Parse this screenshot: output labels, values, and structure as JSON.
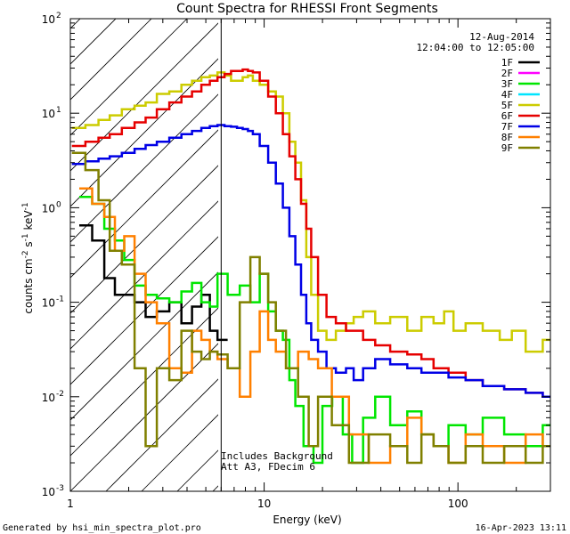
{
  "chart_data": {
    "type": "line",
    "title": "Count Spectra for RHESSI Front Segments",
    "xlabel": "Energy (keV)",
    "ylabel": "counts cm-2 s-1 keV-1",
    "xscale": "log",
    "yscale": "log",
    "xlim": [
      1,
      300
    ],
    "ylim": [
      0.001,
      100
    ],
    "x_ticks": [
      {
        "value": 1,
        "label": "1"
      },
      {
        "value": 10,
        "label": "10"
      },
      {
        "value": 100,
        "label": "100"
      }
    ],
    "y_ticks": [
      {
        "value": 0.001,
        "base": "10",
        "exp": "-3"
      },
      {
        "value": 0.01,
        "base": "10",
        "exp": "-2"
      },
      {
        "value": 0.1,
        "base": "10",
        "exp": "-1"
      },
      {
        "value": 1,
        "base": "10",
        "exp": "0"
      },
      {
        "value": 10,
        "base": "10",
        "exp": "1"
      },
      {
        "value": 100,
        "base": "10",
        "exp": "2"
      }
    ],
    "attenuator_region": {
      "from": 1,
      "to": 6,
      "hatched": true
    },
    "date": "12-Aug-2014",
    "time_range": "12:04:00 to 12:05:00",
    "notes": [
      "Includes Background",
      "Att A3, FDecim 6"
    ],
    "legend_position": "top-right",
    "series": [
      {
        "name": "1F",
        "color": "#000000",
        "x": [
          1.2,
          1.4,
          1.6,
          1.8,
          2.0,
          2.3,
          2.6,
          3.0,
          3.5,
          4.0,
          4.5,
          5.0,
          5.5,
          6.0
        ],
        "y": [
          0.65,
          0.45,
          0.18,
          0.12,
          0.12,
          0.1,
          0.07,
          0.08,
          0.1,
          0.06,
          0.09,
          0.12,
          0.05,
          0.04
        ]
      },
      {
        "name": "2F",
        "color": "#ff00ff",
        "x": [],
        "y": []
      },
      {
        "name": "3F",
        "color": "#00e600",
        "x": [
          1.2,
          1.4,
          1.6,
          1.8,
          2.0,
          2.3,
          2.6,
          3.0,
          3.5,
          4.0,
          4.5,
          5.0,
          5.5,
          6.0,
          7,
          8,
          9,
          10,
          11,
          12,
          13,
          14,
          15,
          17,
          19,
          21,
          24,
          27,
          30,
          35,
          40,
          50,
          60,
          70,
          80,
          100,
          120,
          150,
          200,
          250,
          300
        ],
        "y": [
          1.3,
          1.1,
          0.6,
          0.45,
          0.28,
          0.15,
          0.12,
          0.11,
          0.1,
          0.13,
          0.16,
          0.1,
          0.09,
          0.2,
          0.12,
          0.15,
          0.1,
          0.2,
          0.08,
          0.05,
          0.04,
          0.015,
          0.008,
          0.003,
          0.002,
          0.008,
          0.01,
          0.004,
          0.002,
          0.006,
          0.01,
          0.005,
          0.007,
          0.004,
          0.003,
          0.005,
          0.004,
          0.006,
          0.004,
          0.003,
          0.005
        ]
      },
      {
        "name": "4F",
        "color": "#00e5ff",
        "x": [],
        "y": []
      },
      {
        "name": "5F",
        "color": "#cccc00",
        "x": [
          1.1,
          1.3,
          1.5,
          1.7,
          2.0,
          2.3,
          2.6,
          3.0,
          3.5,
          4.0,
          4.5,
          5.0,
          5.5,
          6.0,
          6.5,
          7,
          7.5,
          8,
          8.5,
          9,
          10,
          11,
          12,
          13,
          14,
          15,
          16,
          17,
          18,
          20,
          22,
          25,
          28,
          30,
          35,
          40,
          50,
          60,
          70,
          80,
          90,
          100,
          120,
          150,
          180,
          200,
          250,
          300
        ],
        "y": [
          7,
          7.5,
          8.5,
          9.5,
          11,
          12,
          13,
          16,
          17,
          20,
          22,
          24,
          25,
          27,
          25,
          22,
          22,
          24,
          25,
          22,
          20,
          17,
          15,
          10,
          5,
          3,
          1.2,
          0.3,
          0.12,
          0.05,
          0.04,
          0.05,
          0.06,
          0.07,
          0.08,
          0.06,
          0.07,
          0.05,
          0.07,
          0.06,
          0.08,
          0.05,
          0.06,
          0.05,
          0.04,
          0.05,
          0.03,
          0.04
        ]
      },
      {
        "name": "6F",
        "color": "#e60000",
        "x": [
          1.1,
          1.3,
          1.5,
          1.7,
          2.0,
          2.3,
          2.6,
          3.0,
          3.5,
          4.0,
          4.5,
          5.0,
          5.5,
          6.0,
          6.5,
          7,
          7.5,
          8,
          8.5,
          9,
          10,
          11,
          12,
          13,
          14,
          15,
          16,
          17,
          18,
          20,
          22,
          25,
          28,
          30,
          35,
          40,
          50,
          60,
          70,
          80,
          100,
          120,
          150,
          200,
          250,
          300
        ],
        "y": [
          4.5,
          5,
          5.5,
          6,
          7,
          8,
          9,
          11,
          13,
          15,
          17,
          20,
          22,
          24,
          26,
          28,
          28,
          29,
          28,
          27,
          22,
          15,
          10,
          6,
          3.5,
          2,
          1.1,
          0.6,
          0.3,
          0.12,
          0.07,
          0.06,
          0.05,
          0.05,
          0.04,
          0.035,
          0.03,
          0.028,
          0.025,
          0.02,
          0.018,
          0.015,
          0.013,
          0.012,
          0.011,
          0.01
        ]
      },
      {
        "name": "7F",
        "color": "#0000e6",
        "x": [
          1.1,
          1.3,
          1.5,
          1.7,
          2.0,
          2.3,
          2.6,
          3.0,
          3.5,
          4.0,
          4.5,
          5.0,
          5.5,
          6.0,
          6.5,
          7,
          7.5,
          8,
          8.5,
          9,
          10,
          11,
          12,
          13,
          14,
          15,
          16,
          17,
          18,
          20,
          22,
          25,
          28,
          30,
          35,
          40,
          50,
          60,
          70,
          80,
          100,
          120,
          150,
          200,
          250,
          300
        ],
        "y": [
          2.9,
          3.1,
          3.3,
          3.5,
          3.8,
          4.2,
          4.6,
          5.0,
          5.5,
          6.0,
          6.5,
          7.0,
          7.3,
          7.5,
          7.3,
          7.2,
          7.0,
          6.8,
          6.5,
          6.0,
          4.5,
          3.0,
          1.8,
          1.0,
          0.5,
          0.25,
          0.12,
          0.06,
          0.04,
          0.03,
          0.02,
          0.018,
          0.02,
          0.015,
          0.02,
          0.025,
          0.022,
          0.02,
          0.018,
          0.018,
          0.016,
          0.015,
          0.013,
          0.012,
          0.011,
          0.01
        ]
      },
      {
        "name": "8F",
        "color": "#ff8000",
        "x": [
          1.2,
          1.4,
          1.6,
          1.8,
          2.0,
          2.3,
          2.6,
          3.0,
          3.5,
          4.0,
          4.5,
          5.0,
          5.5,
          6.0,
          7,
          8,
          9,
          10,
          11,
          12,
          14,
          16,
          18,
          20,
          25,
          30,
          40,
          50,
          60,
          70,
          80,
          100,
          120,
          150,
          200,
          250,
          300
        ],
        "y": [
          1.6,
          1.1,
          0.8,
          0.35,
          0.5,
          0.2,
          0.1,
          0.06,
          0.02,
          0.018,
          0.05,
          0.04,
          0.03,
          0.025,
          0.02,
          0.01,
          0.03,
          0.08,
          0.04,
          0.03,
          0.02,
          0.03,
          0.025,
          0.02,
          0.01,
          0.004,
          0.002,
          0.003,
          0.006,
          0.004,
          0.003,
          0.002,
          0.004,
          0.003,
          0.002,
          0.004,
          0.003
        ]
      },
      {
        "name": "9F",
        "color": "#808000",
        "x": [
          1.1,
          1.3,
          1.5,
          1.7,
          2.0,
          2.3,
          2.6,
          3.0,
          3.5,
          4.0,
          4.5,
          5.0,
          5.5,
          6.0,
          7,
          8,
          9,
          10,
          11,
          12,
          14,
          16,
          18,
          20,
          25,
          30,
          40,
          50,
          60,
          70,
          80,
          100,
          120,
          150,
          200,
          250,
          300
        ],
        "y": [
          3.8,
          2.5,
          1.2,
          0.35,
          0.25,
          0.02,
          0.003,
          0.02,
          0.015,
          0.05,
          0.03,
          0.025,
          0.03,
          0.028,
          0.02,
          0.1,
          0.3,
          0.2,
          0.1,
          0.05,
          0.02,
          0.01,
          0.003,
          0.01,
          0.005,
          0.002,
          0.004,
          0.003,
          0.002,
          0.004,
          0.003,
          0.002,
          0.003,
          0.002,
          0.003,
          0.002,
          0.003
        ]
      }
    ]
  },
  "footer": {
    "left": "Generated by hsi_min_spectra_plot.pro",
    "right": "16-Apr-2023 13:11"
  }
}
